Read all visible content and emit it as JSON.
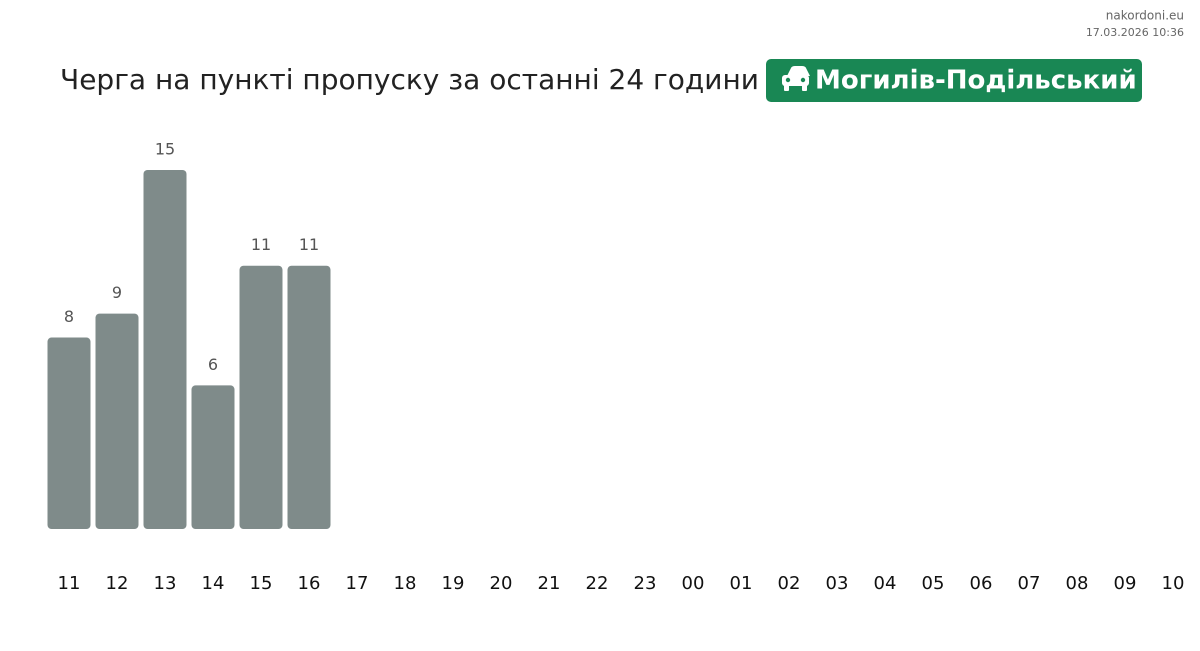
{
  "chart_data": {
    "type": "bar",
    "title": "Черга на пункті пропуску за останні 24 години",
    "subtitle": "Могилів-Подільський",
    "annotations": [
      "nakordoni.eu",
      "17.03.2026 10:36"
    ],
    "categories": [
      "11",
      "12",
      "13",
      "14",
      "15",
      "16",
      "17",
      "18",
      "19",
      "20",
      "21",
      "22",
      "23",
      "00",
      "01",
      "02",
      "03",
      "04",
      "05",
      "06",
      "07",
      "08",
      "09",
      "10"
    ],
    "values": [
      8,
      9,
      15,
      6,
      11,
      11,
      null,
      null,
      null,
      null,
      null,
      null,
      null,
      null,
      null,
      null,
      null,
      null,
      null,
      null,
      null,
      null,
      null,
      null
    ],
    "color": "#7f8b8a"
  }
}
